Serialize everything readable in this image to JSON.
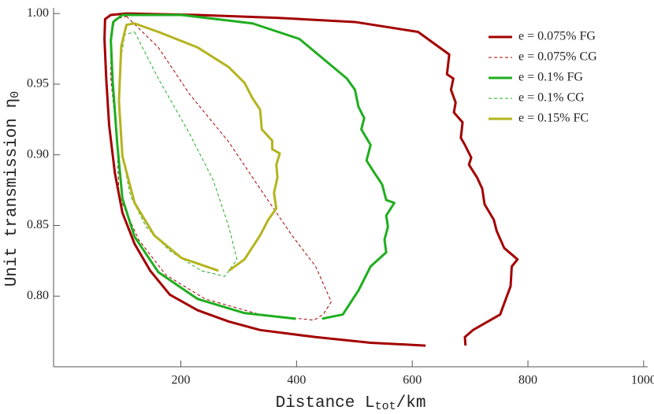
{
  "chart_data": {
    "type": "line",
    "xlabel": {
      "main": "Distance L",
      "sub": "tot",
      "tail": "/km"
    },
    "ylabel": {
      "main": "Unit transmission η",
      "sub": "0"
    },
    "xlim": [
      -20,
      1007
    ],
    "ylim": [
      0.75,
      1.004
    ],
    "xticks": [
      200,
      400,
      600,
      800,
      1000
    ],
    "yticks": [
      {
        "value": 0.8,
        "label": "0.80"
      },
      0.85,
      {
        "value": 0.9,
        "label": "0.90"
      },
      0.95,
      {
        "value": 1.0,
        "label": "1.00"
      }
    ],
    "legend": "top-right",
    "series": [
      {
        "name": "e = 0.075% FG",
        "color": "#a30000",
        "dashed": false,
        "x": [
          623,
          528,
          433,
          337,
          283,
          229,
          181,
          147,
          120,
          99,
          86,
          76,
          71,
          68,
          69,
          79,
          106,
          229,
          365,
          501,
          610,
          664,
          660,
          671,
          667,
          675,
          672,
          687,
          684,
          691,
          702,
          698,
          712,
          721,
          725,
          741,
          746,
          759,
          782,
          772,
          770,
          760,
          752,
          705,
          691,
          692
        ],
        "y": [
          0.765,
          0.767,
          0.771,
          0.776,
          0.782,
          0.79,
          0.801,
          0.818,
          0.837,
          0.859,
          0.887,
          0.921,
          0.954,
          0.982,
          0.996,
          0.999,
          1.0,
          0.999,
          0.997,
          0.994,
          0.987,
          0.971,
          0.957,
          0.954,
          0.946,
          0.937,
          0.93,
          0.923,
          0.912,
          0.907,
          0.898,
          0.893,
          0.884,
          0.876,
          0.865,
          0.854,
          0.846,
          0.834,
          0.826,
          0.821,
          0.807,
          0.796,
          0.787,
          0.776,
          0.771,
          0.765
        ]
      },
      {
        "name": "e = 0.075% CG",
        "color": "#a30000",
        "dashed": true,
        "x": [
          106,
          161,
          215,
          283,
          337,
          392,
          433,
          460,
          446,
          430,
          337,
          242,
          174,
          127,
          93,
          90,
          79,
          79,
          86,
          106
        ],
        "y": [
          0.998,
          0.976,
          0.943,
          0.909,
          0.876,
          0.843,
          0.821,
          0.796,
          0.787,
          0.783,
          0.787,
          0.798,
          0.815,
          0.84,
          0.871,
          0.909,
          0.954,
          0.982,
          0.996,
          0.998
        ]
      },
      {
        "name": "e = 0.1% FG",
        "color": "#1fae1f",
        "dashed": false,
        "x": [
          399,
          310,
          229,
          161,
          120,
          99,
          90,
          82,
          79,
          83,
          99,
          201,
          324,
          405,
          487,
          501,
          507,
          517,
          512,
          528,
          521,
          535,
          548,
          555,
          569,
          555,
          558,
          552,
          555,
          528,
          507,
          480,
          444
        ],
        "y": [
          0.784,
          0.788,
          0.798,
          0.817,
          0.842,
          0.869,
          0.908,
          0.953,
          0.981,
          0.994,
          0.999,
          0.999,
          0.993,
          0.982,
          0.954,
          0.946,
          0.934,
          0.926,
          0.918,
          0.907,
          0.896,
          0.887,
          0.879,
          0.868,
          0.866,
          0.857,
          0.849,
          0.84,
          0.831,
          0.821,
          0.804,
          0.787,
          0.784
        ]
      },
      {
        "name": "e = 0.1% CG",
        "color": "#1fae1f",
        "dashed": true,
        "x": [
          120,
          161,
          215,
          256,
          283,
          297,
          276,
          235,
          181,
          140,
          113,
          99,
          93,
          95,
          103,
          120
        ],
        "y": [
          0.987,
          0.954,
          0.915,
          0.882,
          0.849,
          0.826,
          0.814,
          0.818,
          0.832,
          0.849,
          0.871,
          0.899,
          0.932,
          0.965,
          0.985,
          0.987
        ]
      },
      {
        "name": "e = 0.15% FC",
        "color": "#b4b41e",
        "dashed": false,
        "x": [
          265,
          201,
          154,
          120,
          99,
          93,
          97,
          106,
          120,
          161,
          229,
          283,
          310,
          324,
          337,
          340,
          358,
          358,
          371,
          365,
          367,
          361,
          365,
          351,
          337,
          310,
          283
        ],
        "y": [
          0.818,
          0.827,
          0.843,
          0.866,
          0.899,
          0.938,
          0.977,
          0.992,
          0.993,
          0.987,
          0.976,
          0.962,
          0.951,
          0.94,
          0.932,
          0.918,
          0.91,
          0.904,
          0.901,
          0.893,
          0.884,
          0.873,
          0.862,
          0.854,
          0.843,
          0.826,
          0.818
        ]
      }
    ]
  }
}
